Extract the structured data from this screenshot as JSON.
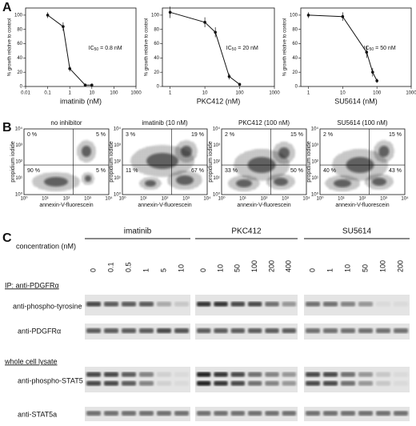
{
  "chart_data": [
    {
      "type": "line",
      "x": [
        0.1,
        0.5,
        1,
        5,
        10
      ],
      "values": [
        100,
        84,
        25,
        2,
        2
      ],
      "errors": [
        4,
        6,
        4,
        1,
        1
      ],
      "xlim": [
        0.01,
        1000
      ],
      "xticks": [
        0.01,
        0.1,
        1,
        10,
        100,
        1000
      ],
      "ylim": [
        0,
        110
      ],
      "yticks": [
        0,
        20,
        40,
        60,
        80,
        100
      ],
      "log_x": true,
      "xlabel": "imatinib (nM)",
      "ylabel": "% growth relative to control",
      "color": "#111",
      "annotation": {
        "main": "IC",
        "sub": "50",
        "rest": " = 0.8 nM"
      }
    },
    {
      "type": "line",
      "x": [
        1,
        10,
        20,
        50,
        100
      ],
      "values": [
        104,
        90,
        76,
        14,
        3
      ],
      "errors": [
        8,
        7,
        7,
        4,
        2
      ],
      "xlim": [
        0.6,
        1000
      ],
      "xticks": [
        1,
        10,
        100,
        1000
      ],
      "ylim": [
        0,
        110
      ],
      "yticks": [
        0,
        20,
        40,
        60,
        80,
        100
      ],
      "log_x": true,
      "xlabel": "PKC412 (nM)",
      "ylabel": "% growth relative to control",
      "color": "#111",
      "annotation": {
        "main": "IC",
        "sub": "50",
        "rest": " = 20 nM"
      }
    },
    {
      "type": "line",
      "x": [
        1,
        10,
        50,
        75,
        100
      ],
      "values": [
        100,
        98,
        48,
        20,
        8
      ],
      "errors": [
        4,
        6,
        8,
        6,
        3
      ],
      "xlim": [
        0.6,
        1000
      ],
      "xticks": [
        1,
        10,
        100,
        1000
      ],
      "ylim": [
        0,
        110
      ],
      "yticks": [
        0,
        20,
        40,
        60,
        80,
        100
      ],
      "log_x": true,
      "xlabel": "SU5614 (nM)",
      "ylabel": "% growth relative to control",
      "color": "#111",
      "annotation": {
        "main": "IC",
        "sub": "50",
        "rest": " = 50 nM"
      }
    }
  ],
  "panel_labels": [
    "A",
    "B",
    "C"
  ],
  "flow": {
    "xlabel": "annexin-V-fluorescein",
    "ylabel": "propidium iodide",
    "ticks": [
      "10⁰",
      "10¹",
      "10²",
      "10³",
      "10⁴"
    ],
    "panels": [
      {
        "title": "no inhibitor",
        "quadrants": [
          "0 %",
          "5 %",
          "90 %",
          "5 %"
        ]
      },
      {
        "title": "imatinib (10 nM)",
        "quadrants": [
          "3 %",
          "19 %",
          "11 %",
          "67 %"
        ]
      },
      {
        "title": "PKC412 (100 nM)",
        "quadrants": [
          "2 %",
          "15 %",
          "33 %",
          "50 %"
        ]
      },
      {
        "title": "SU5614 (100 nM)",
        "quadrants": [
          "2 %",
          "15 %",
          "40 %",
          "43 %"
        ]
      }
    ]
  },
  "blot": {
    "concentration_label": "concentration (nM)",
    "groups": [
      {
        "name": "imatinib",
        "lanes": [
          "0",
          "0.1",
          "0.5",
          "1",
          "5",
          "10"
        ]
      },
      {
        "name": "PKC412",
        "lanes": [
          "0",
          "10",
          "50",
          "100",
          "200",
          "400"
        ]
      },
      {
        "name": "SU5614",
        "lanes": [
          "0",
          "1",
          "10",
          "50",
          "100",
          "200"
        ]
      }
    ],
    "sections": [
      "IP: anti-PDGFRα",
      "whole cell lysate"
    ],
    "rows": [
      "anti-phospho-tyrosine",
      "anti-PDGFRα",
      "anti-phospho-STAT5",
      "anti-STAT5a"
    ]
  }
}
